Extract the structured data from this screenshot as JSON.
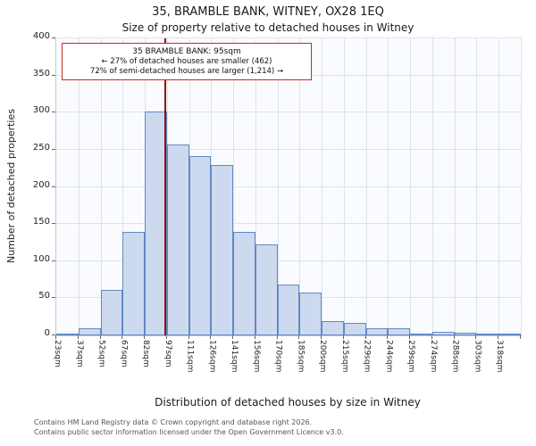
{
  "header": {
    "title": "35, BRAMBLE BANK, WITNEY, OX28 1EQ",
    "subtitle": "Size of property relative to detached houses in Witney"
  },
  "annotation": {
    "lines": [
      "35 BRAMBLE BANK: 95sqm",
      "← 27% of detached houses are smaller (462)",
      "72% of semi-detached houses are larger (1,214) →"
    ],
    "border_color": "#cc2929"
  },
  "chart_data": {
    "type": "bar",
    "title": "35, BRAMBLE BANK, WITNEY, OX28 1EQ",
    "subtitle": "Size of property relative to detached houses in Witney",
    "xlabel": "Distribution of detached houses by size in Witney",
    "ylabel": "Number of detached properties",
    "categories": [
      "23sqm",
      "37sqm",
      "52sqm",
      "67sqm",
      "82sqm",
      "97sqm",
      "111sqm",
      "126sqm",
      "141sqm",
      "156sqm",
      "170sqm",
      "185sqm",
      "200sqm",
      "215sqm",
      "229sqm",
      "244sqm",
      "259sqm",
      "274sqm",
      "288sqm",
      "303sqm",
      "318sqm"
    ],
    "values": [
      3,
      10,
      61,
      139,
      301,
      257,
      241,
      230,
      139,
      123,
      68,
      58,
      19,
      17,
      10,
      10,
      3,
      5,
      4,
      2,
      1
    ],
    "yticks": [
      0,
      50,
      100,
      150,
      200,
      250,
      300,
      350,
      400
    ],
    "ylim": [
      0,
      400
    ],
    "x_axis": {
      "min": 23,
      "max": 332.75,
      "bin_width": 14.75
    },
    "marker": {
      "value": 95,
      "label": "35 BRAMBLE BANK: 95sqm",
      "color": "#8f1010"
    },
    "bar_fill": "#cdd9ef",
    "bar_border": "#6189c4",
    "grid": true,
    "legend": null
  },
  "footer": {
    "lines": [
      "Contains HM Land Registry data © Crown copyright and database right 2026.",
      "Contains public sector information licensed under the Open Government Licence v3.0."
    ]
  }
}
